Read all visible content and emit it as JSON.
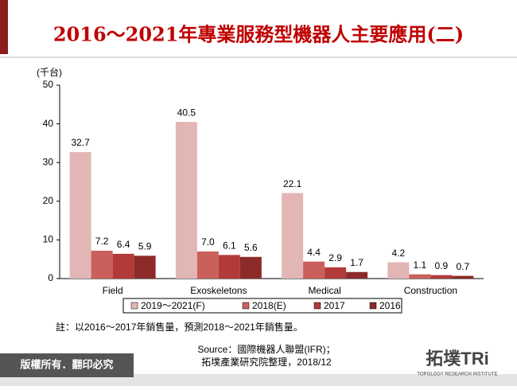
{
  "chart_data": {
    "type": "bar",
    "title": "2016～2021年專業服務型機器人主要應用(二)",
    "y_label": "(千台)",
    "categories": [
      "Field",
      "Exoskeletons",
      "Medical",
      "Construction"
    ],
    "series": [
      {
        "name": "2019～2021(F)",
        "color": "#e2b6b5",
        "values": [
          32.7,
          40.5,
          22.1,
          4.2
        ]
      },
      {
        "name": "2018(E)",
        "color": "#c9605c",
        "values": [
          7.2,
          7.0,
          4.4,
          1.1
        ],
        "value_labels": [
          "7.2",
          "7.0",
          "4.4",
          "1.1"
        ]
      },
      {
        "name": "2017",
        "color": "#b23a38",
        "values": [
          6.4,
          6.1,
          2.9,
          0.9
        ]
      },
      {
        "name": "2016",
        "color": "#8c2b29",
        "values": [
          5.9,
          5.6,
          1.7,
          0.7
        ]
      }
    ],
    "ylim": [
      0,
      50
    ],
    "yticks": [
      0,
      10,
      20,
      30,
      40,
      50
    ],
    "legend": "bottom",
    "note": "註：以2016～2017年銷售量，預測2018～2021年銷售量。",
    "source": [
      "Source：國際機器人聯盟(IFR)；",
      "拓墣產業研究院整理，2018/12"
    ]
  },
  "footer": {
    "copyright": "版權所有．翻印必究",
    "logo": "拓墣TRi",
    "logo_subtitle": "TOPOLOGY RESEARCH INSTITUTE"
  }
}
